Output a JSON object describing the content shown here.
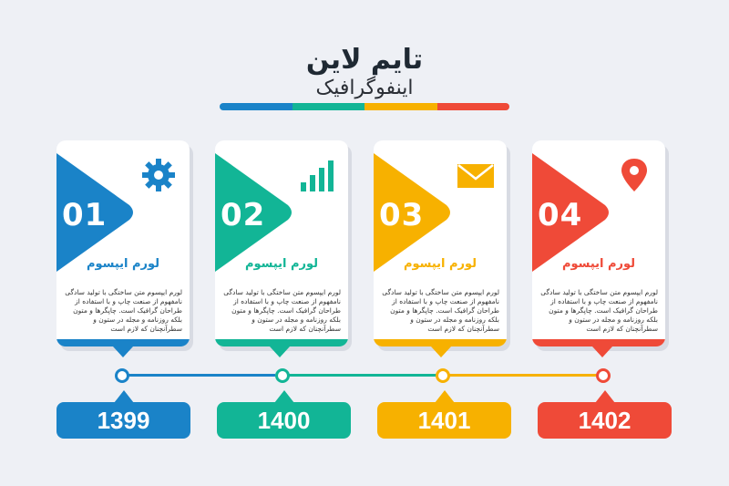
{
  "title": "تایم لاین",
  "subtitle": "اینفوگرافیک",
  "colors": [
    "#1a83c8",
    "#12b596",
    "#f7b100",
    "#ef4a38"
  ],
  "steps": [
    {
      "number": "01",
      "heading": "لورم ایپسوم",
      "body": "لورم ایپسوم متن ساختگی با تولید سادگی نامفهوم از صنعت چاپ و با استفاده از طراحان گرافیک است. چاپگرها و متون بلکه روزنامه و مجله در ستون و سطرآنچنان که لازم است",
      "icon": "gear-icon",
      "year": "1399"
    },
    {
      "number": "02",
      "heading": "لورم ایپسوم",
      "body": "لورم ایپسوم متن ساختگی با تولید سادگی نامفهوم از صنعت چاپ و با استفاده از طراحان گرافیک است. چاپگرها و متون بلکه روزنامه و مجله در ستون و سطرآنچنان که لازم است",
      "icon": "bar-chart-icon",
      "year": "1400"
    },
    {
      "number": "03",
      "heading": "لورم ایپسوم",
      "body": "لورم ایپسوم متن ساختگی با تولید سادگی نامفهوم از صنعت چاپ و با استفاده از طراحان گرافیک است. چاپگرها و متون بلکه روزنامه و مجله در ستون و سطرآنچنان که لازم است",
      "icon": "envelope-icon",
      "year": "1401"
    },
    {
      "number": "04",
      "heading": "لورم ایپسوم",
      "body": "لورم ایپسوم متن ساختگی با تولید سادگی نامفهوم از صنعت چاپ و با استفاده از طراحان گرافیک است. چاپگرها و متون بلکه روزنامه و مجله در ستون و سطرآنچنان که لازم است",
      "icon": "map-pin-icon",
      "year": "1402"
    }
  ]
}
